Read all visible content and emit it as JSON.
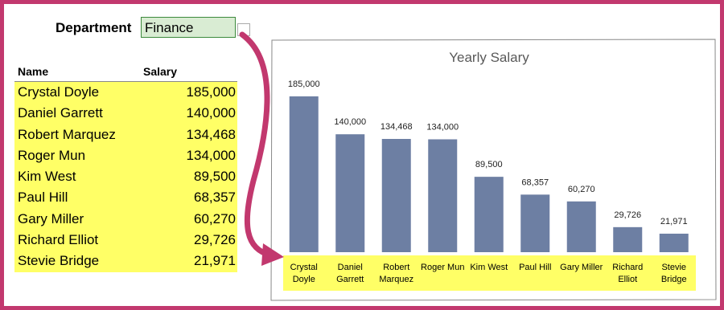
{
  "department": {
    "label": "Department",
    "value": "Finance"
  },
  "table": {
    "header": [
      "Name",
      "Salary"
    ],
    "rows": [
      [
        "Crystal Doyle",
        "185,000"
      ],
      [
        "Daniel Garrett",
        "140,000"
      ],
      [
        "Robert Marquez",
        "134,468"
      ],
      [
        "Roger Mun",
        "134,000"
      ],
      [
        "Kim West",
        "89,500"
      ],
      [
        "Paul Hill",
        "68,357"
      ],
      [
        "Gary Miller",
        "60,270"
      ],
      [
        "Richard Elliot",
        "29,726"
      ],
      [
        "Stevie Bridge",
        "21,971"
      ]
    ]
  },
  "chart_data": {
    "type": "bar",
    "title": "Yearly Salary",
    "categories": [
      "Crystal Doyle",
      "Daniel Garrett",
      "Robert Marquez",
      "Roger Mun",
      "Kim West",
      "Paul Hill",
      "Gary Miller",
      "Richard Elliot",
      "Stevie Bridge"
    ],
    "values": [
      185000,
      140000,
      134468,
      134000,
      89500,
      68357,
      60270,
      29726,
      21971
    ],
    "value_labels": [
      "185,000",
      "140,000",
      "134,468",
      "134,000",
      "89,500",
      "68,357",
      "60,270",
      "29,726",
      "21,971"
    ],
    "color": "#6d7fa3"
  }
}
